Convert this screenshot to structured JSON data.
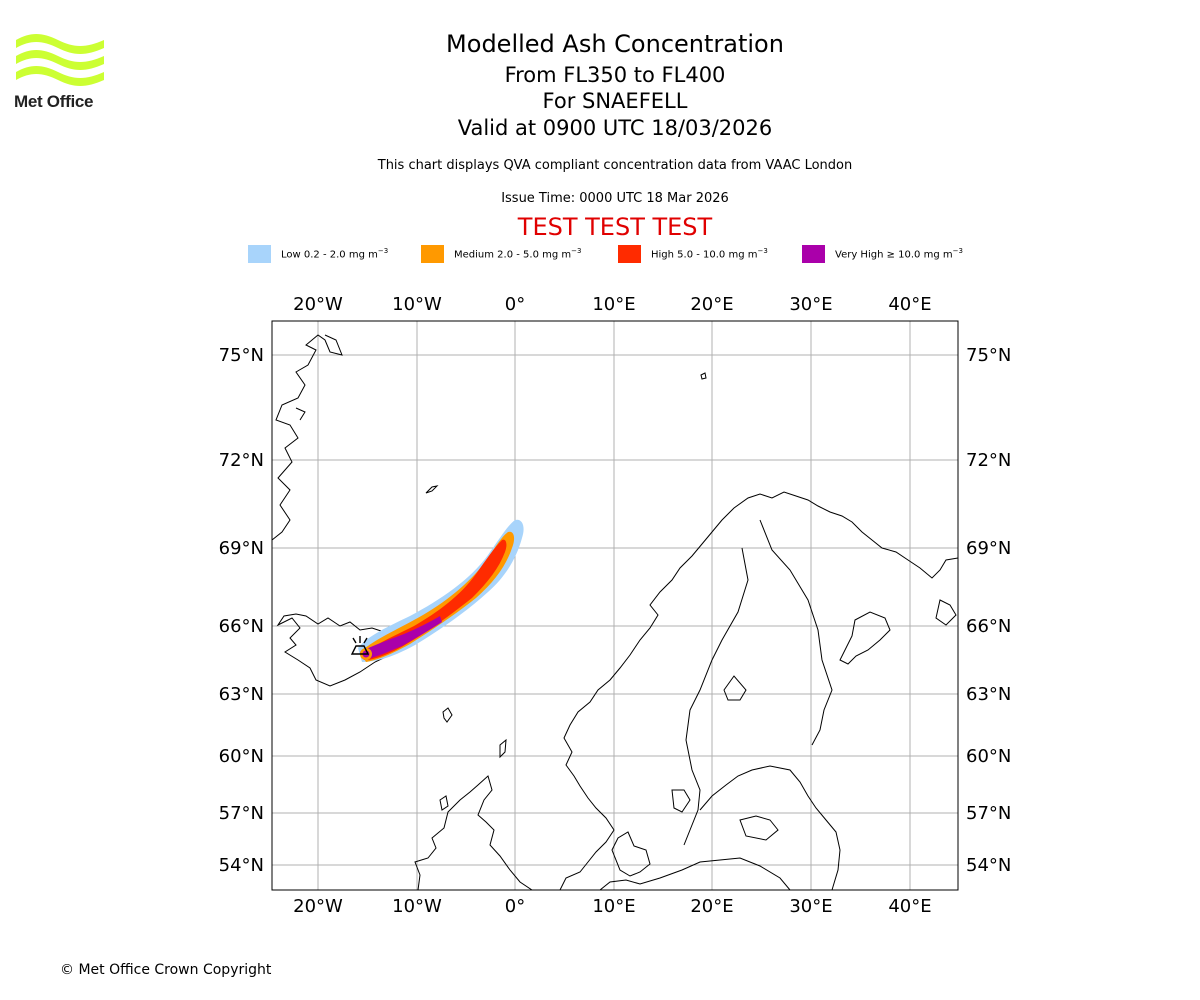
{
  "logo": {
    "text": "Met Office",
    "color": "#ccff33"
  },
  "header": {
    "title": "Modelled Ash Concentration",
    "flight_levels": "From FL350 to FL400",
    "volcano": "For SNAEFELL",
    "valid_time": "Valid at 0900 UTC 18/03/2026",
    "description": "This chart displays QVA compliant concentration data from VAAC London",
    "issue_time": "Issue Time: 0000 UTC 18 Mar 2026",
    "test_banner": "TEST TEST TEST"
  },
  "legend": [
    {
      "label": "Low 0.2 - 2.0 mg m",
      "color": "#a8d4fb"
    },
    {
      "label": "Medium 2.0 - 5.0 mg m",
      "color": "#ff9900"
    },
    {
      "label": "High 5.0 - 10.0 mg m",
      "color": "#ff2b00"
    },
    {
      "label": "Very High ≥ 10.0 mg m",
      "color": "#aa00aa"
    }
  ],
  "legend_exponent": "−3",
  "map": {
    "lon_labels": [
      "20°W",
      "10°W",
      "0°",
      "10°E",
      "20°E",
      "30°E",
      "40°E"
    ],
    "lat_labels": [
      "75°N",
      "72°N",
      "69°N",
      "66°N",
      "63°N",
      "60°N",
      "57°N",
      "54°N"
    ],
    "lon_extent": [
      -25,
      45
    ],
    "lat_extent": [
      52.8,
      75.8
    ],
    "volcano_location": {
      "lon": -15.6,
      "lat": 64.8
    }
  },
  "footer": {
    "copyright": "© Met Office Crown Copyright"
  }
}
